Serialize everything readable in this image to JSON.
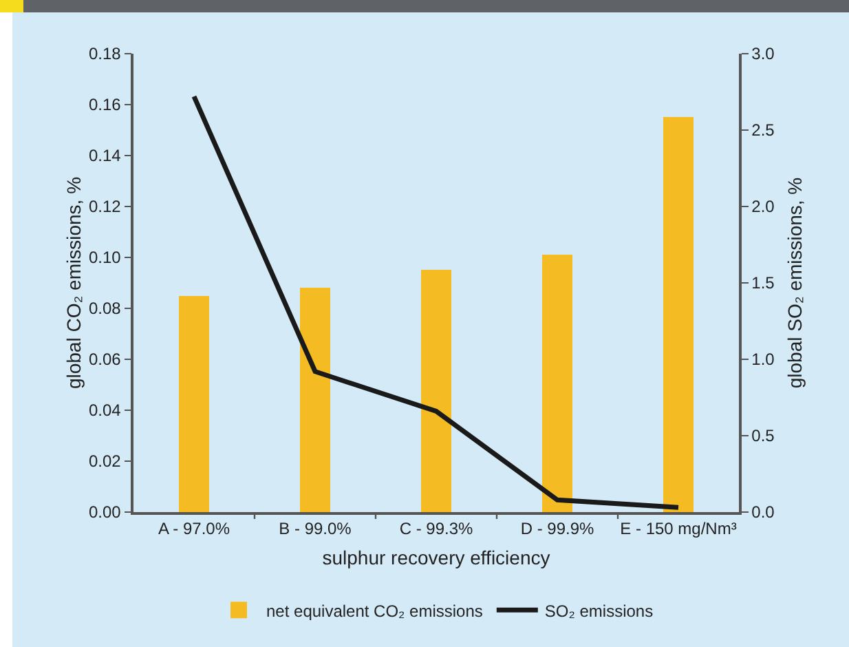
{
  "chart_data": {
    "type": "bar",
    "xlabel": "sulphur recovery efficiency",
    "ylabel": "global CO₂ emissions, %",
    "y2label": "global SO₂ emissions, %",
    "categories": [
      "A - 97.0%",
      "B - 99.0%",
      "C - 99.3%",
      "D - 99.9%",
      "E - 150 mg/Nm³"
    ],
    "series": [
      {
        "name": "net equivalent CO₂ emissions",
        "color": "#f4bc22",
        "values": [
          0.085,
          0.088,
          0.095,
          0.101,
          0.155
        ]
      },
      {
        "name": "SO₂ emissions",
        "type": "line",
        "axis": "y2",
        "color": "#1a1a1a",
        "values": [
          2.72,
          0.92,
          0.66,
          0.08,
          0.03
        ]
      }
    ],
    "ylim": [
      0,
      0.18
    ],
    "yticks": [
      {
        "value": 0,
        "label": "0.00"
      },
      {
        "value": 0.02,
        "label": "0.02"
      },
      {
        "value": 0.04,
        "label": "0.04"
      },
      {
        "value": 0.06,
        "label": "0.06"
      },
      {
        "value": 0.08,
        "label": "0.08"
      },
      {
        "value": 0.1,
        "label": "0.10"
      },
      {
        "value": 0.12,
        "label": "0.12"
      },
      {
        "value": 0.14,
        "label": "0.14"
      },
      {
        "value": 0.16,
        "label": "0.16"
      },
      {
        "value": 0.18,
        "label": "0.18"
      }
    ],
    "y2lim": [
      0,
      3
    ],
    "y2ticks": [
      {
        "value": 0,
        "label": "0.0"
      },
      {
        "value": 0.5,
        "label": "0.5"
      },
      {
        "value": 1,
        "label": "1.0"
      },
      {
        "value": 1.5,
        "label": "1.5"
      },
      {
        "value": 2,
        "label": "2.0"
      },
      {
        "value": 2.5,
        "label": "2.5"
      },
      {
        "value": 3,
        "label": "3.0"
      }
    ],
    "grid": false,
    "legend": "bottom",
    "marker": "none",
    "line_style": "solid"
  }
}
